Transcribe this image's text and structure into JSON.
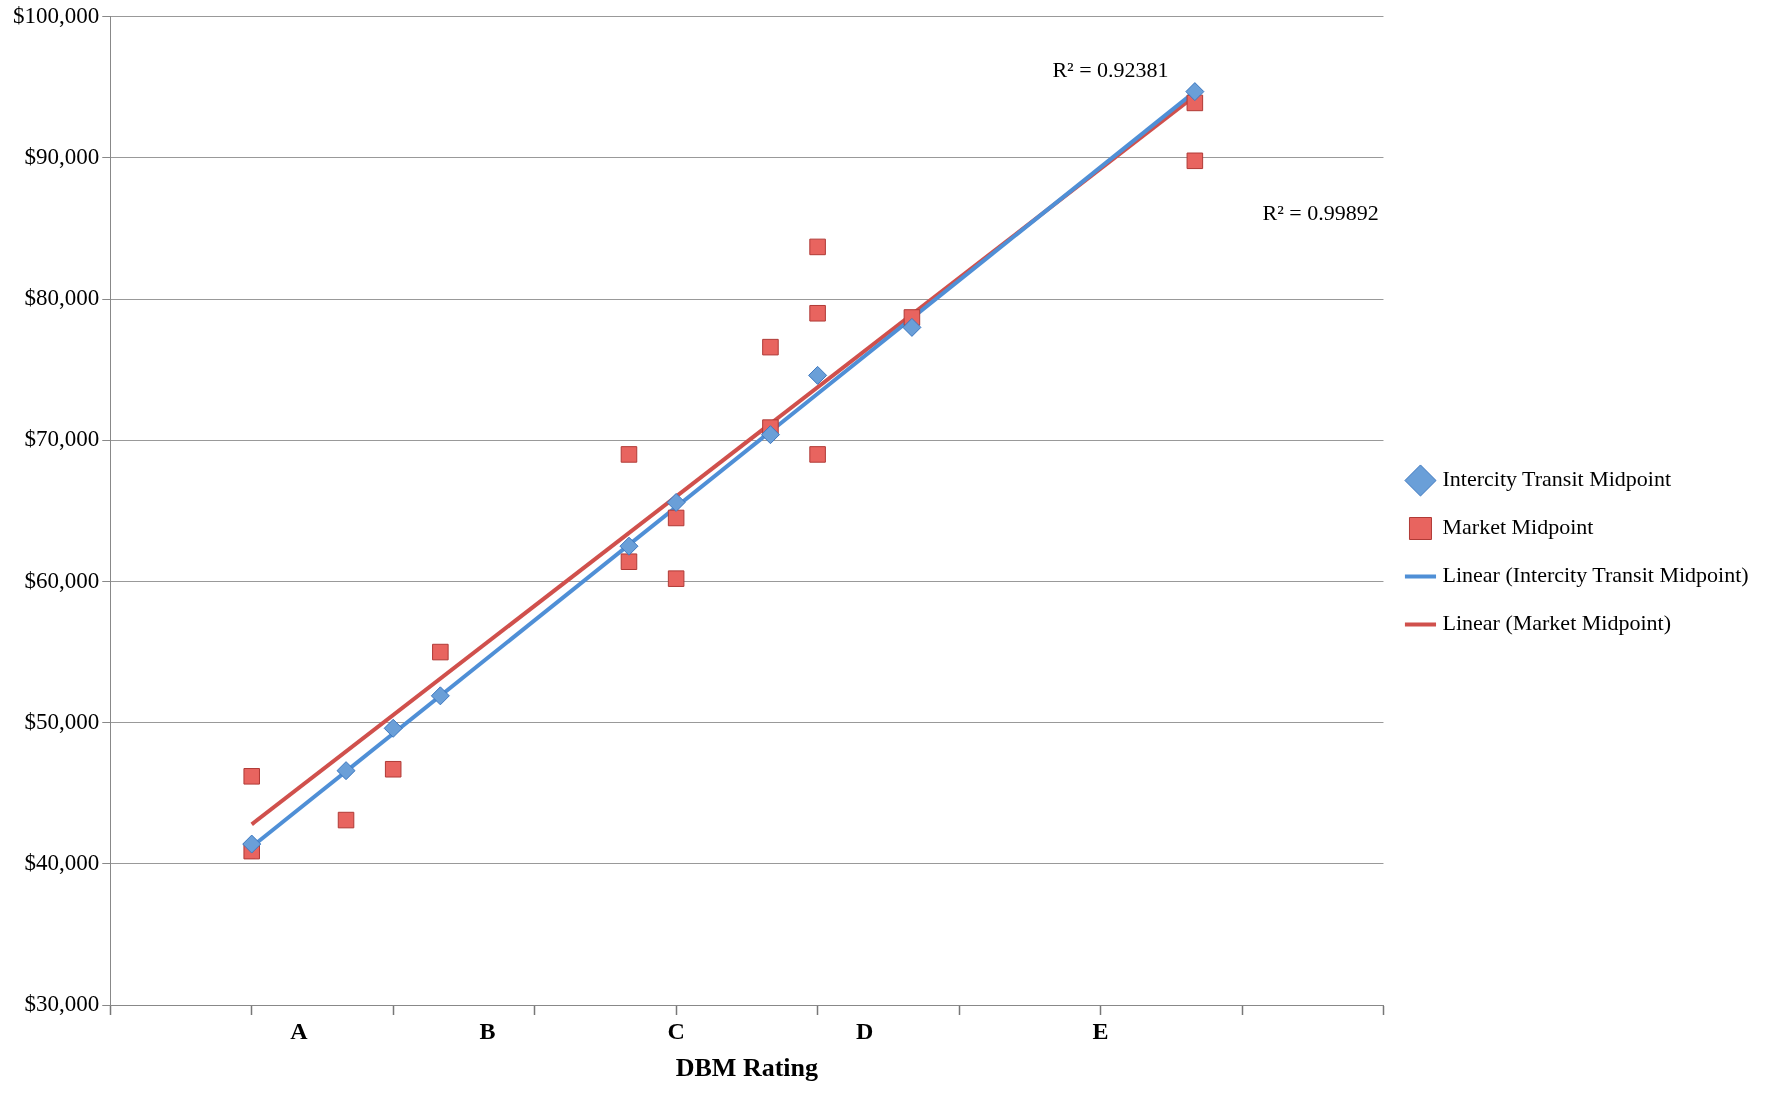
{
  "chart_data": {
    "type": "scatter",
    "xlabel": "DBM Rating",
    "categories": [
      null,
      null,
      null,
      null,
      "A",
      null,
      null,
      null,
      "B",
      null,
      null,
      null,
      "C",
      null,
      null,
      null,
      "D",
      null,
      null,
      null,
      null,
      "E",
      null,
      null,
      null,
      null,
      null,
      null
    ],
    "ylim": [
      30000,
      100000
    ],
    "yticks": [
      {
        "value": 30000,
        "label": "$30,000"
      },
      {
        "value": 40000,
        "label": "$40,000"
      },
      {
        "value": 50000,
        "label": "$50,000"
      },
      {
        "value": 60000,
        "label": "$60,000"
      },
      {
        "value": 70000,
        "label": "$70,000"
      },
      {
        "value": 80000,
        "label": "$80,000"
      },
      {
        "value": 90000,
        "label": "$90,000"
      },
      {
        "value": 100000,
        "label": "$100,000"
      }
    ],
    "grid": "y",
    "legend": "right",
    "series": [
      {
        "name": "Intercity Transit Midpoint",
        "type": "scatter",
        "marker": "diamond",
        "color": "#6a9fd8",
        "values": [
          null,
          null,
          null,
          41400,
          null,
          46600,
          49600,
          51900,
          null,
          null,
          null,
          62500,
          65600,
          null,
          70400,
          74600,
          null,
          78000,
          null,
          null,
          null,
          null,
          null,
          94700,
          null,
          null,
          null,
          null
        ]
      },
      {
        "name": "Market Midpoint",
        "type": "scatter",
        "marker": "square",
        "color": "#e8645f",
        "values": [
          null,
          null,
          null,
          46200,
          null,
          43100,
          46700,
          55000,
          null,
          null,
          null,
          69000,
          64500,
          null,
          76600,
          83700,
          null,
          78700,
          null,
          null,
          null,
          null,
          null,
          93900,
          null,
          null,
          null,
          null
        ]
      },
      {
        "type": "scatter",
        "marker": "square",
        "color": "#e8645f",
        "values": [
          null,
          null,
          null,
          40900,
          null,
          null,
          null,
          null,
          null,
          null,
          null,
          null,
          60200,
          null,
          70900,
          79000,
          null,
          null,
          null,
          null,
          null,
          null,
          null,
          89800,
          null,
          null,
          null,
          null
        ]
      },
      {
        "type": "scatter",
        "marker": "square",
        "color": "#e8645f",
        "values": [
          null,
          null,
          null,
          null,
          null,
          null,
          null,
          null,
          null,
          null,
          null,
          61400,
          null,
          null,
          null,
          69000,
          null,
          null,
          null,
          null,
          null,
          null,
          null,
          null,
          null,
          null,
          null,
          null
        ]
      },
      {
        "name": "Linear (Intercity Transit Midpoint)",
        "type": "line",
        "marker": "none",
        "color": "#4f8fd6",
        "values": [
          null,
          null,
          null,
          41200,
          null,
          null,
          null,
          null,
          null,
          null,
          null,
          null,
          null,
          null,
          null,
          null,
          null,
          null,
          null,
          null,
          null,
          null,
          null,
          94700,
          null,
          null,
          null,
          null
        ]
      },
      {
        "name": "Linear (Market Midpoint)",
        "type": "line",
        "marker": "none",
        "color": "#d0504c",
        "values": [
          null,
          null,
          null,
          42800,
          null,
          null,
          null,
          null,
          null,
          null,
          null,
          null,
          null,
          null,
          null,
          null,
          null,
          null,
          null,
          null,
          null,
          null,
          null,
          94400,
          null,
          null,
          null,
          null
        ]
      }
    ],
    "annotations": [
      "R² = 0.92381",
      "R² = 0.99892"
    ]
  }
}
